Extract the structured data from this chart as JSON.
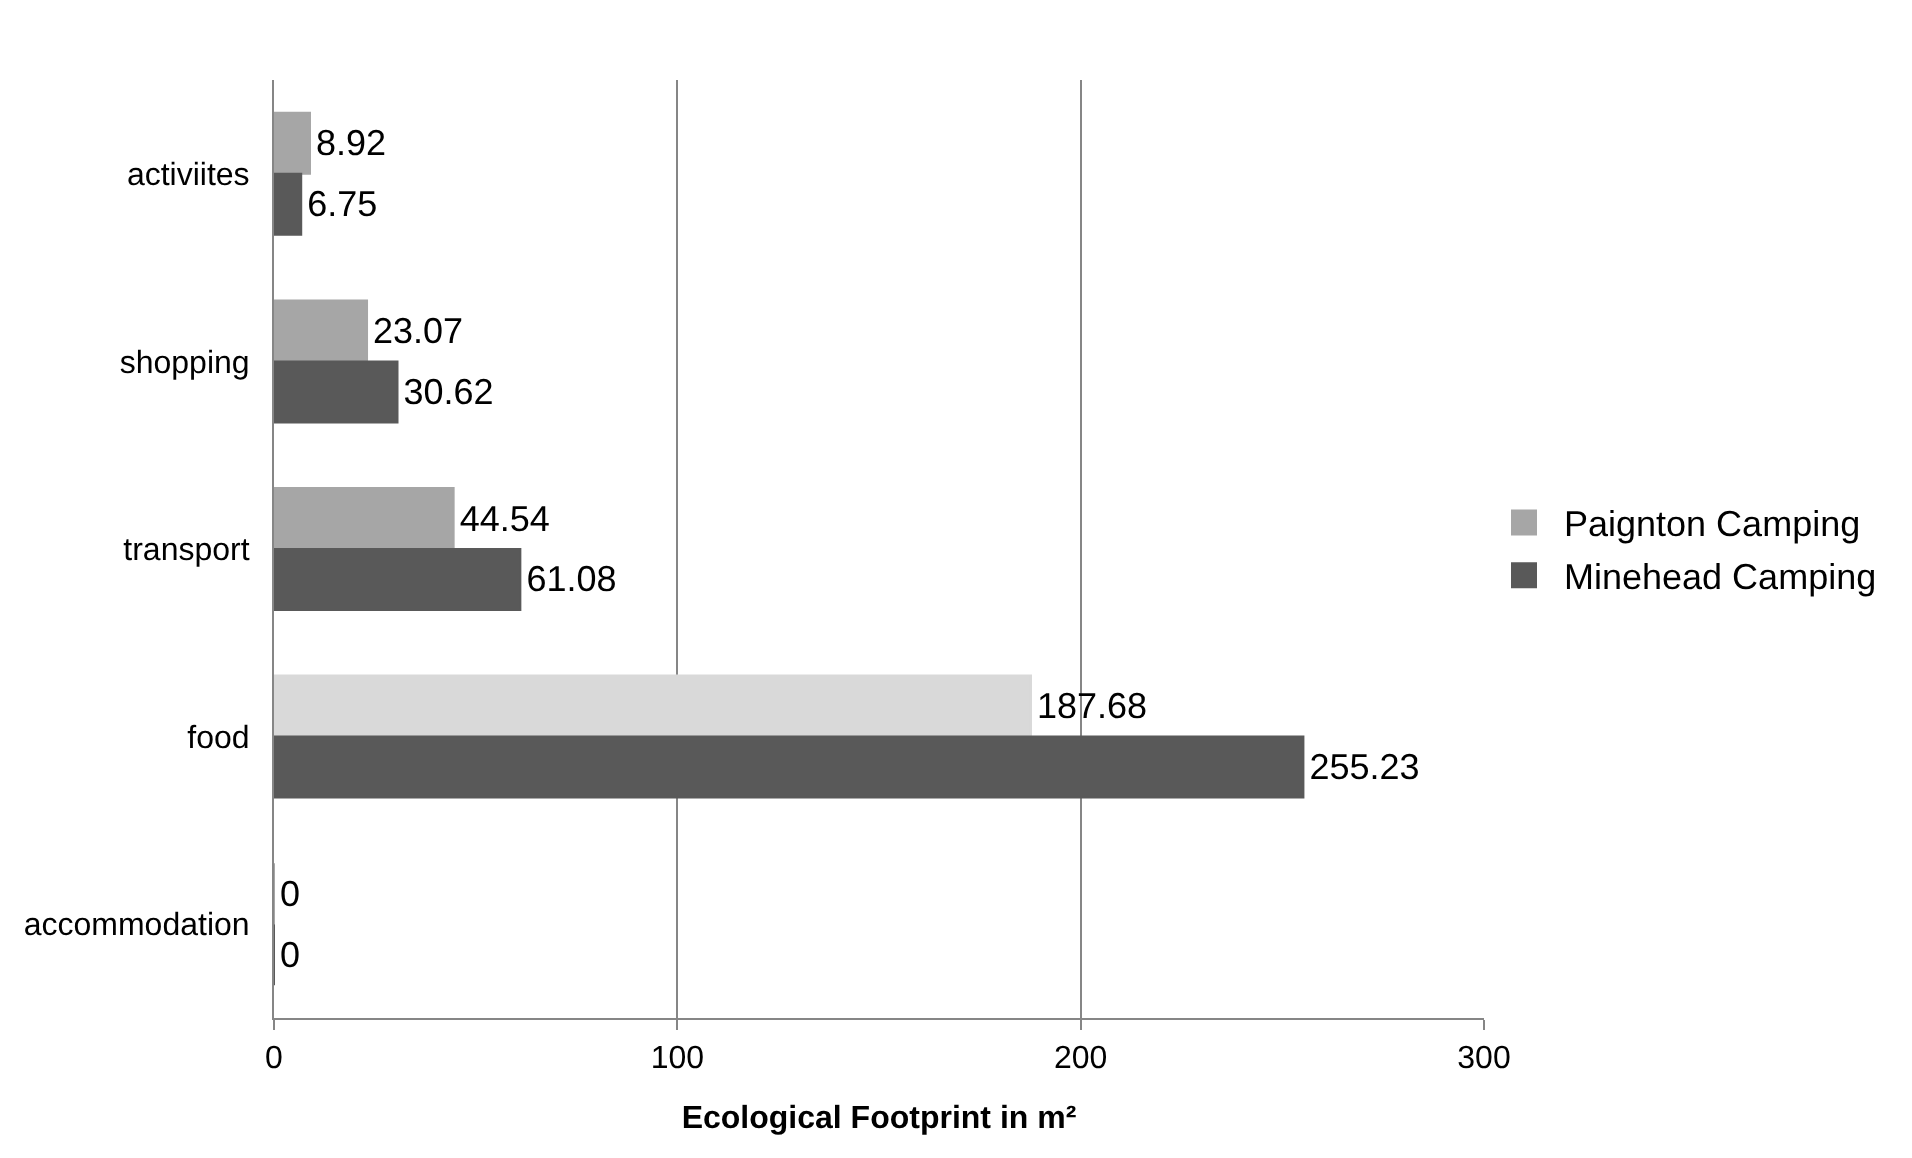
{
  "chart_data": {
    "type": "bar",
    "orientation": "horizontal",
    "categories": [
      "activiites",
      "shopping",
      "transport",
      "food",
      "accommodation"
    ],
    "series": [
      {
        "name": "Paignton Camping",
        "color": "#a6a6a6",
        "colors": [
          "#a6a6a6",
          "#a6a6a6",
          "#a6a6a6",
          "#d9d9d9",
          "#a6a6a6"
        ],
        "values": [
          8.92,
          23.07,
          44.54,
          187.68,
          0
        ]
      },
      {
        "name": "Minehead Camping",
        "color": "#595959",
        "values": [
          6.75,
          30.62,
          61.08,
          255.23,
          0
        ]
      }
    ],
    "xlabel": "Ecological Footprint in m²",
    "xlim": [
      0,
      300
    ],
    "xticks": [
      0,
      100,
      200,
      300
    ],
    "grid": "x",
    "legend": "right",
    "data_labels": true
  }
}
